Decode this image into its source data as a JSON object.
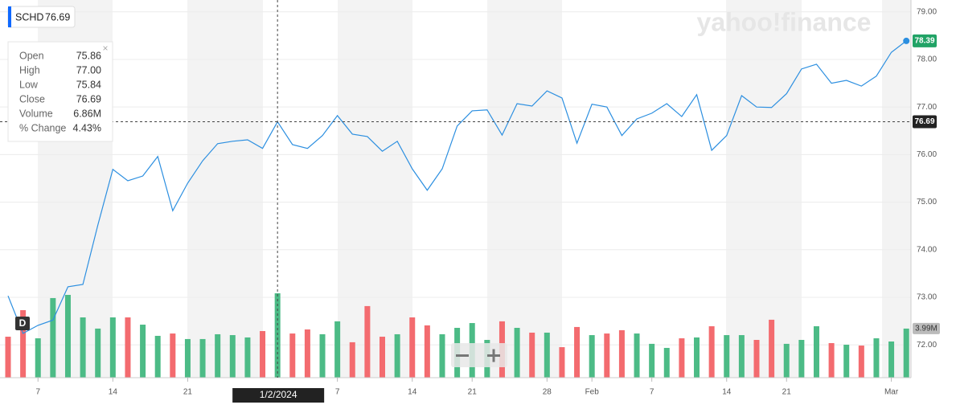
{
  "watermark": "yahoo!finance",
  "dividend_marker": "D",
  "crosshair_date": "1/2/2024",
  "tooltip": [
    {
      "label": "Open",
      "value": "75.86"
    },
    {
      "label": "High",
      "value": "77.00"
    },
    {
      "label": "Low",
      "value": "75.84"
    },
    {
      "label": "Close",
      "value": "76.69"
    },
    {
      "label": "Volume",
      "value": "6.86M"
    },
    {
      "label": "% Change",
      "value": "4.43%"
    }
  ],
  "chart_data": {
    "type": "line",
    "categories": [
      null,
      null,
      "7",
      null,
      null,
      null,
      null,
      "14",
      null,
      null,
      null,
      null,
      "21",
      null,
      null,
      null,
      null,
      null,
      null,
      null,
      null,
      null,
      "7",
      null,
      null,
      null,
      null,
      "14",
      null,
      null,
      null,
      "21",
      null,
      null,
      null,
      null,
      "28",
      null,
      null,
      "Feb",
      null,
      null,
      null,
      "7",
      null,
      null,
      null,
      null,
      "14",
      null,
      null,
      null,
      "21",
      null,
      null,
      null,
      null,
      null,
      null,
      "Mar",
      null
    ],
    "series": [
      {
        "name": "SCHD",
        "color": "#2c8fe0",
        "values": [
          73.03,
          72.24,
          72.41,
          72.52,
          73.22,
          73.27,
          74.52,
          75.69,
          75.45,
          75.55,
          75.96,
          74.82,
          75.4,
          75.87,
          76.23,
          76.28,
          76.31,
          76.13,
          76.69,
          76.21,
          76.13,
          76.4,
          76.82,
          76.43,
          76.38,
          76.07,
          76.28,
          75.7,
          75.25,
          75.7,
          76.6,
          76.92,
          76.94,
          76.41,
          77.07,
          77.02,
          77.34,
          77.19,
          76.24,
          77.06,
          77.0,
          76.4,
          76.75,
          76.87,
          77.07,
          76.8,
          77.26,
          76.09,
          76.4,
          77.24,
          77.0,
          76.99,
          77.28,
          77.8,
          77.9,
          77.5,
          77.56,
          77.44,
          77.65,
          78.15,
          78.39
        ]
      }
    ],
    "volume": {
      "values": [
        3.33,
        5.49,
        3.2,
        6.47,
        6.73,
        4.9,
        3.99,
        4.9,
        4.9,
        4.31,
        3.4,
        3.59,
        3.14,
        3.14,
        3.53,
        3.46,
        3.27,
        3.79,
        6.86,
        3.59,
        3.92,
        3.53,
        4.58,
        2.88,
        5.82,
        3.33,
        3.53,
        4.9,
        4.25,
        3.53,
        4.05,
        4.44,
        3.07,
        4.58,
        4.05,
        3.66,
        3.66,
        2.48,
        4.12,
        3.46,
        3.59,
        3.86,
        3.59,
        2.75,
        2.42,
        3.2,
        3.27,
        4.18,
        3.46,
        3.46,
        3.07,
        4.71,
        2.75,
        3.07,
        4.18,
        2.81,
        2.68,
        2.61,
        3.2,
        2.94,
        3.99
      ],
      "value_labels": {
        "60": "3.99M"
      },
      "colors": [
        "#f36b6f",
        "#f36b6f",
        "#4cbb86",
        "#4cbb86",
        "#4cbb86",
        "#4cbb86",
        "#4cbb86",
        "#4cbb86",
        "#f36b6f",
        "#4cbb86",
        "#4cbb86",
        "#f36b6f",
        "#4cbb86",
        "#4cbb86",
        "#4cbb86",
        "#4cbb86",
        "#4cbb86",
        "#f36b6f",
        "#4cbb86",
        "#f36b6f",
        "#f36b6f",
        "#4cbb86",
        "#4cbb86",
        "#f36b6f",
        "#f36b6f",
        "#f36b6f",
        "#4cbb86",
        "#f36b6f",
        "#f36b6f",
        "#4cbb86",
        "#4cbb86",
        "#4cbb86",
        "#4cbb86",
        "#f36b6f",
        "#4cbb86",
        "#f36b6f",
        "#4cbb86",
        "#f36b6f",
        "#f36b6f",
        "#4cbb86",
        "#f36b6f",
        "#f36b6f",
        "#4cbb86",
        "#4cbb86",
        "#4cbb86",
        "#f36b6f",
        "#4cbb86",
        "#f36b6f",
        "#4cbb86",
        "#4cbb86",
        "#f36b6f",
        "#f36b6f",
        "#4cbb86",
        "#4cbb86",
        "#4cbb86",
        "#f36b6f",
        "#4cbb86",
        "#f36b6f",
        "#4cbb86",
        "#4cbb86",
        "#4cbb86"
      ]
    },
    "ylim": [
      71.31,
      79.25
    ],
    "yticks": [
      {
        "value": 72,
        "label": "72.00"
      },
      {
        "value": 73,
        "label": "73.00"
      },
      {
        "value": 74,
        "label": "74.00"
      },
      {
        "value": 75,
        "label": "75.00"
      },
      {
        "value": 76,
        "label": "76.00"
      },
      {
        "value": 77,
        "label": "77.00"
      },
      {
        "value": 78,
        "label": "78.00"
      },
      {
        "value": 79,
        "label": "79.00"
      }
    ],
    "grid": true
  }
}
